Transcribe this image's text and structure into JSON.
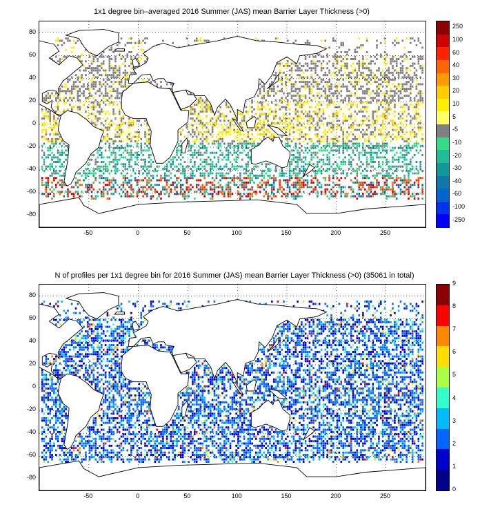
{
  "maps": [
    {
      "title": "1x1 degree bin–averaged 2016 Summer (JAS) mean Barrier Layer Thickness (>0)",
      "xticks": [
        "-50",
        "0",
        "50",
        "100",
        "150",
        "200",
        "250"
      ],
      "yticks": [
        "80",
        "60",
        "40",
        "20",
        "0",
        "-20",
        "-40",
        "-60",
        "-80"
      ],
      "colorbar": {
        "labels": [
          "250",
          "100",
          "60",
          "40",
          "30",
          "20",
          "10",
          "5",
          "-5",
          "-10",
          "-20",
          "-30",
          "-40",
          "-60",
          "-100",
          "-250"
        ],
        "colors": [
          "#8b0000",
          "#cc0000",
          "#ff2200",
          "#ff6600",
          "#ff9900",
          "#ffcc00",
          "#ffee00",
          "#ffff66",
          "#808080",
          "#33dd88",
          "#22bb99",
          "#119999",
          "#1177aa",
          "#0066cc",
          "#0033ee",
          "#0000ff"
        ]
      }
    },
    {
      "title": "N of profiles per 1x1 degree bin for 2016 Summer (JAS) mean Barrier Layer Thickness (>0) (35061 in total)",
      "xticks": [
        "-50",
        "0",
        "50",
        "100",
        "150",
        "200",
        "250"
      ],
      "yticks": [
        "80",
        "60",
        "40",
        "20",
        "0",
        "-20",
        "-40",
        "-60",
        "-80"
      ],
      "colorbar": {
        "labels": [
          "9",
          "8",
          "7",
          "6",
          "5",
          "4",
          "3",
          "2",
          "1",
          "0"
        ],
        "colors": [
          "#8b0000",
          "#ff0000",
          "#ff8800",
          "#ffdd00",
          "#aaff44",
          "#33ffcc",
          "#00bbff",
          "#0066ff",
          "#0000cc",
          "#00008b"
        ]
      }
    }
  ]
}
